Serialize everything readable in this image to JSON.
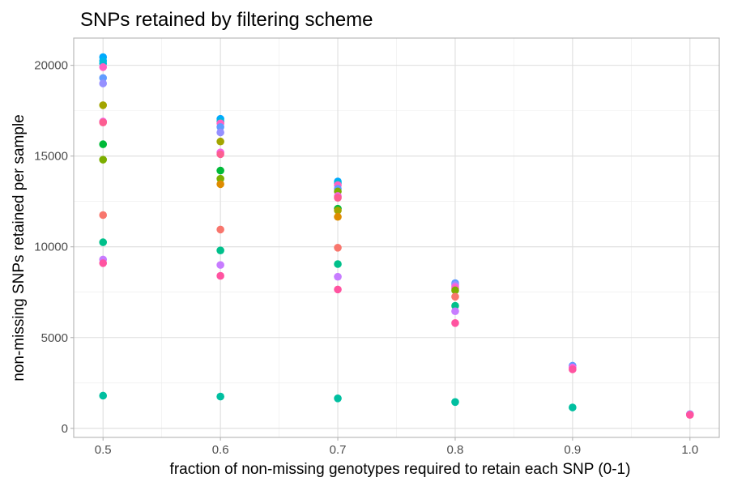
{
  "chart_data": {
    "type": "scatter",
    "title": "SNPs retained by filtering scheme",
    "xlabel": "fraction of non-missing genotypes required to retain each SNP (0-1)",
    "ylabel": "non-missing SNPs retained per sample",
    "xlim": [
      0.475,
      1.025
    ],
    "ylim": [
      -500,
      21500
    ],
    "x_ticks": [
      0.5,
      0.6,
      0.7,
      0.8,
      0.9,
      1.0
    ],
    "x_tick_labels": [
      "0.5",
      "0.6",
      "0.7",
      "0.8",
      "0.9",
      "1.0"
    ],
    "y_ticks": [
      0,
      5000,
      10000,
      15000,
      20000
    ],
    "y_tick_labels": [
      "0",
      "5000",
      "10000",
      "15000",
      "20000"
    ],
    "grid": true,
    "legend": "none",
    "points": [
      {
        "x": 0.5,
        "y": 20450,
        "color": "#00a9ff"
      },
      {
        "x": 0.5,
        "y": 20250,
        "color": "#00b4ef"
      },
      {
        "x": 0.5,
        "y": 20100,
        "color": "#00bcd8"
      },
      {
        "x": 0.5,
        "y": 19900,
        "color": "#ff61c3"
      },
      {
        "x": 0.5,
        "y": 19300,
        "color": "#619cff"
      },
      {
        "x": 0.5,
        "y": 19000,
        "color": "#9590ff"
      },
      {
        "x": 0.5,
        "y": 17800,
        "color": "#a3a500"
      },
      {
        "x": 0.5,
        "y": 16900,
        "color": "#f564e3"
      },
      {
        "x": 0.5,
        "y": 16850,
        "color": "#fc5e91"
      },
      {
        "x": 0.5,
        "y": 15650,
        "color": "#00ba38"
      },
      {
        "x": 0.5,
        "y": 14800,
        "color": "#7cae00"
      },
      {
        "x": 0.5,
        "y": 11750,
        "color": "#f8766d"
      },
      {
        "x": 0.5,
        "y": 10250,
        "color": "#00c08b"
      },
      {
        "x": 0.5,
        "y": 9300,
        "color": "#c77cff"
      },
      {
        "x": 0.5,
        "y": 9100,
        "color": "#ff53a0"
      },
      {
        "x": 0.5,
        "y": 1800,
        "color": "#00bfa0"
      },
      {
        "x": 0.6,
        "y": 17050,
        "color": "#00a9ff"
      },
      {
        "x": 0.6,
        "y": 16900,
        "color": "#00bcd8"
      },
      {
        "x": 0.6,
        "y": 16800,
        "color": "#ff61c3"
      },
      {
        "x": 0.6,
        "y": 16600,
        "color": "#619cff"
      },
      {
        "x": 0.6,
        "y": 16300,
        "color": "#9590ff"
      },
      {
        "x": 0.6,
        "y": 15800,
        "color": "#a3a500"
      },
      {
        "x": 0.6,
        "y": 15200,
        "color": "#f564e3"
      },
      {
        "x": 0.6,
        "y": 15100,
        "color": "#fc5e91"
      },
      {
        "x": 0.6,
        "y": 14200,
        "color": "#00ba38"
      },
      {
        "x": 0.6,
        "y": 13750,
        "color": "#7cae00"
      },
      {
        "x": 0.6,
        "y": 13450,
        "color": "#de8c00"
      },
      {
        "x": 0.6,
        "y": 10950,
        "color": "#f8766d"
      },
      {
        "x": 0.6,
        "y": 9800,
        "color": "#00c08b"
      },
      {
        "x": 0.6,
        "y": 9000,
        "color": "#c77cff"
      },
      {
        "x": 0.6,
        "y": 8400,
        "color": "#ff53a0"
      },
      {
        "x": 0.6,
        "y": 1750,
        "color": "#00bfa0"
      },
      {
        "x": 0.7,
        "y": 13600,
        "color": "#00a9ff"
      },
      {
        "x": 0.7,
        "y": 13500,
        "color": "#00bcd8"
      },
      {
        "x": 0.7,
        "y": 13400,
        "color": "#ff61c3"
      },
      {
        "x": 0.7,
        "y": 13200,
        "color": "#619cff"
      },
      {
        "x": 0.7,
        "y": 13050,
        "color": "#7cae00"
      },
      {
        "x": 0.7,
        "y": 12800,
        "color": "#f564e3"
      },
      {
        "x": 0.7,
        "y": 12700,
        "color": "#fc5e91"
      },
      {
        "x": 0.7,
        "y": 12100,
        "color": "#00ba38"
      },
      {
        "x": 0.7,
        "y": 12000,
        "color": "#a3a500"
      },
      {
        "x": 0.7,
        "y": 11650,
        "color": "#de8c00"
      },
      {
        "x": 0.7,
        "y": 9950,
        "color": "#f8766d"
      },
      {
        "x": 0.7,
        "y": 9050,
        "color": "#00c08b"
      },
      {
        "x": 0.7,
        "y": 8350,
        "color": "#c77cff"
      },
      {
        "x": 0.7,
        "y": 7650,
        "color": "#ff53a0"
      },
      {
        "x": 0.7,
        "y": 1650,
        "color": "#00bfa0"
      },
      {
        "x": 0.8,
        "y": 8000,
        "color": "#619cff"
      },
      {
        "x": 0.8,
        "y": 7900,
        "color": "#9590ff"
      },
      {
        "x": 0.8,
        "y": 7800,
        "color": "#f564e3"
      },
      {
        "x": 0.8,
        "y": 7700,
        "color": "#ff61c3"
      },
      {
        "x": 0.8,
        "y": 7600,
        "color": "#7cae00"
      },
      {
        "x": 0.8,
        "y": 7250,
        "color": "#f8766d"
      },
      {
        "x": 0.8,
        "y": 6750,
        "color": "#00c08b"
      },
      {
        "x": 0.8,
        "y": 6450,
        "color": "#c77cff"
      },
      {
        "x": 0.8,
        "y": 5800,
        "color": "#ff53a0"
      },
      {
        "x": 0.8,
        "y": 1450,
        "color": "#00bfa0"
      },
      {
        "x": 0.9,
        "y": 3450,
        "color": "#619cff"
      },
      {
        "x": 0.9,
        "y": 3350,
        "color": "#f564e3"
      },
      {
        "x": 0.9,
        "y": 3250,
        "color": "#ff53a0"
      },
      {
        "x": 0.9,
        "y": 1150,
        "color": "#00bfa0"
      },
      {
        "x": 1.0,
        "y": 780,
        "color": "#619cff"
      },
      {
        "x": 1.0,
        "y": 760,
        "color": "#f564e3"
      },
      {
        "x": 1.0,
        "y": 740,
        "color": "#ff53a0"
      }
    ]
  }
}
